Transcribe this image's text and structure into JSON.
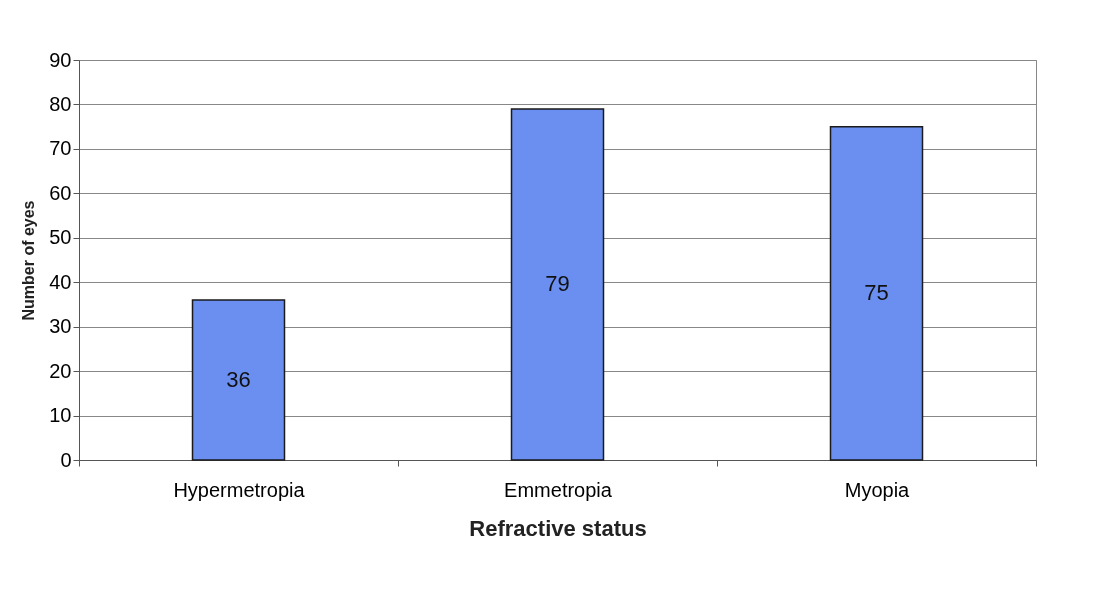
{
  "chart_data": {
    "type": "bar",
    "xlabel": "Refractive status",
    "ylabel": "Number of eyes",
    "categories": [
      "Hypermetropia",
      "Emmetropia",
      "Myopia"
    ],
    "values": [
      36,
      79,
      75
    ],
    "color": "#6a8ff0",
    "ylim": [
      0,
      90
    ],
    "yticks": [
      0,
      10,
      20,
      30,
      40,
      50,
      60,
      70,
      80,
      90
    ],
    "grid": "y",
    "data_labels": true
  }
}
